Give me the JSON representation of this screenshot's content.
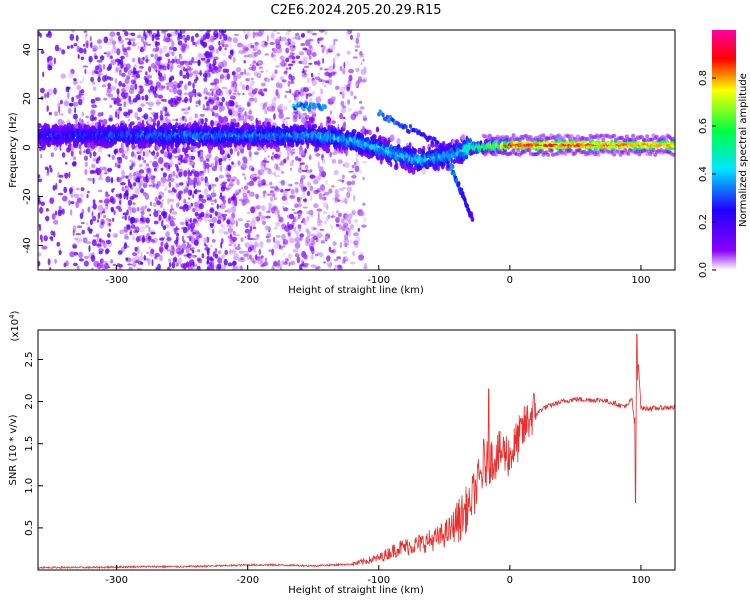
{
  "title": "C2E6.2024.205.20.29.R15",
  "chart_data": [
    {
      "type": "heatmap",
      "panel": "top",
      "xlabel": "Height of straight line (km)",
      "ylabel": "Frequency (Hz)",
      "xlim": [
        -360,
        126
      ],
      "ylim": [
        -50,
        48
      ],
      "xticks": [
        -300,
        -200,
        -100,
        0,
        100
      ],
      "xtick_labels": [
        "-300",
        "-200",
        "-100",
        "0",
        "100"
      ],
      "yticks": [
        -40,
        -20,
        0,
        20,
        40
      ],
      "ytick_labels": [
        "-40",
        "-20",
        "0",
        "20",
        "40"
      ],
      "colorbar": {
        "label": "Normalized spectral amplitude",
        "range": [
          0,
          1
        ],
        "ticks": [
          0,
          0.2,
          0.4,
          0.6,
          0.8
        ],
        "tick_labels": [
          "0.0",
          "0.2",
          "0.4",
          "0.6",
          "0.8"
        ],
        "colormap_stops": [
          "#ffffff",
          "#8a00ff",
          "#2000ff",
          "#00e5ff",
          "#00ff40",
          "#ffff00",
          "#ff0000",
          "#ff00a0"
        ]
      },
      "ridge": [
        {
          "x": -360,
          "y": 5,
          "amp": 0.25
        },
        {
          "x": -300,
          "y": 5,
          "amp": 0.3
        },
        {
          "x": -250,
          "y": 5,
          "amp": 0.35
        },
        {
          "x": -200,
          "y": 5,
          "amp": 0.35
        },
        {
          "x": -150,
          "y": 5,
          "amp": 0.38
        },
        {
          "x": -120,
          "y": 3,
          "amp": 0.4
        },
        {
          "x": -90,
          "y": -2,
          "amp": 0.42
        },
        {
          "x": -70,
          "y": -5,
          "amp": 0.42
        },
        {
          "x": -50,
          "y": -4,
          "amp": 0.4
        },
        {
          "x": -40,
          "y": -2,
          "amp": 0.4
        },
        {
          "x": -30,
          "y": 0,
          "amp": 0.55
        },
        {
          "x": 0,
          "y": 1,
          "amp": 0.9
        },
        {
          "x": 50,
          "y": 1,
          "amp": 0.9
        },
        {
          "x": 100,
          "y": 1,
          "amp": 0.85
        },
        {
          "x": 126,
          "y": 1,
          "amp": 0.85
        }
      ],
      "hump": {
        "x": [
          -165,
          -140
        ],
        "y": 17,
        "amp": 0.35
      },
      "branches": [
        {
          "from": [
            -45,
            -8
          ],
          "to": [
            -28,
            -30
          ],
          "amp": 0.35
        },
        {
          "from": [
            -100,
            14
          ],
          "to": [
            -45,
            -1
          ],
          "amp": 0.35
        }
      ]
    },
    {
      "type": "line",
      "panel": "bottom",
      "xlabel": "Height of straight line (km)",
      "ylabel": "SNR (10 * v/v)",
      "y_multiplier": "(x10^4)",
      "xlim": [
        -360,
        126
      ],
      "ylim": [
        0,
        2.85
      ],
      "xticks": [
        -300,
        -200,
        -100,
        0,
        100
      ],
      "xtick_labels": [
        "-300",
        "-200",
        "-100",
        "0",
        "100"
      ],
      "yticks": [
        0.5,
        1.0,
        1.5,
        2.0,
        2.5
      ],
      "ytick_labels": [
        "0.5",
        "1.0",
        "1.5",
        "2.0",
        "2.5"
      ],
      "series": [
        {
          "color": "#e8302e",
          "x": [
            -360,
            -320,
            -280,
            -250,
            -220,
            -200,
            -180,
            -150,
            -120,
            -100,
            -85,
            -70,
            -55,
            -45,
            -35,
            -30,
            -25,
            -20,
            -15,
            -10,
            -5,
            0,
            5,
            10,
            15,
            20,
            25,
            30,
            40,
            50,
            60,
            70,
            80,
            85,
            90,
            93,
            95,
            97,
            98,
            100,
            110,
            120,
            126
          ],
          "y": [
            0.02,
            0.02,
            0.03,
            0.03,
            0.04,
            0.05,
            0.05,
            0.04,
            0.06,
            0.12,
            0.22,
            0.26,
            0.32,
            0.4,
            0.62,
            0.75,
            0.95,
            1.15,
            1.25,
            1.3,
            1.35,
            1.3,
            1.45,
            1.6,
            1.75,
            1.85,
            1.92,
            1.95,
            2.0,
            2.03,
            2.02,
            2.02,
            1.98,
            1.95,
            1.95,
            2.05,
            1.75,
            2.1,
            2.5,
            1.92,
            1.92,
            1.93,
            1.93
          ],
          "spikes": [
            {
              "x": -20,
              "y": 1.55
            },
            {
              "x": -16,
              "y": 2.15
            },
            {
              "x": -30,
              "y": 0.7
            },
            {
              "x": 97,
              "y": 2.8
            },
            {
              "x": 96,
              "y": 0.8
            }
          ]
        }
      ]
    }
  ]
}
